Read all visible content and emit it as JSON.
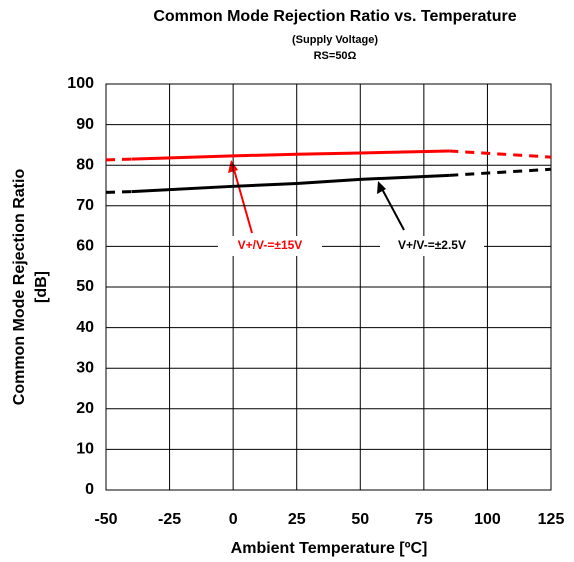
{
  "chart_data": {
    "type": "line",
    "title": "Common Mode Rejection Ratio vs. Temperature",
    "subtitle": "(Supply Voltage)",
    "subtitle2": "RS=50Ω",
    "x_label": "Ambient Temperature [ºC]",
    "y_label": [
      "Common Mode Rejection Ratio",
      "[dB]"
    ],
    "x": [
      -50,
      -40,
      0,
      25,
      50,
      85,
      125
    ],
    "solid_range": [
      -40,
      85
    ],
    "series": [
      {
        "name": "V+/V-=±15V",
        "color": "#ff0000",
        "values": [
          81.3,
          81.5,
          82.3,
          82.7,
          83,
          83.5,
          82
        ]
      },
      {
        "name": "V+/V-=±2.5V",
        "color": "#000000",
        "values": [
          73.3,
          73.5,
          74.8,
          75.5,
          76.5,
          77.5,
          79
        ]
      }
    ],
    "xlim": [
      -50,
      125
    ],
    "xticks": [
      -50,
      -25,
      0,
      25,
      50,
      75,
      100,
      125
    ],
    "ylim": [
      0,
      100
    ],
    "yticks": [
      0,
      10,
      20,
      30,
      40,
      50,
      60,
      70,
      80,
      90,
      100
    ],
    "grid": true
  }
}
